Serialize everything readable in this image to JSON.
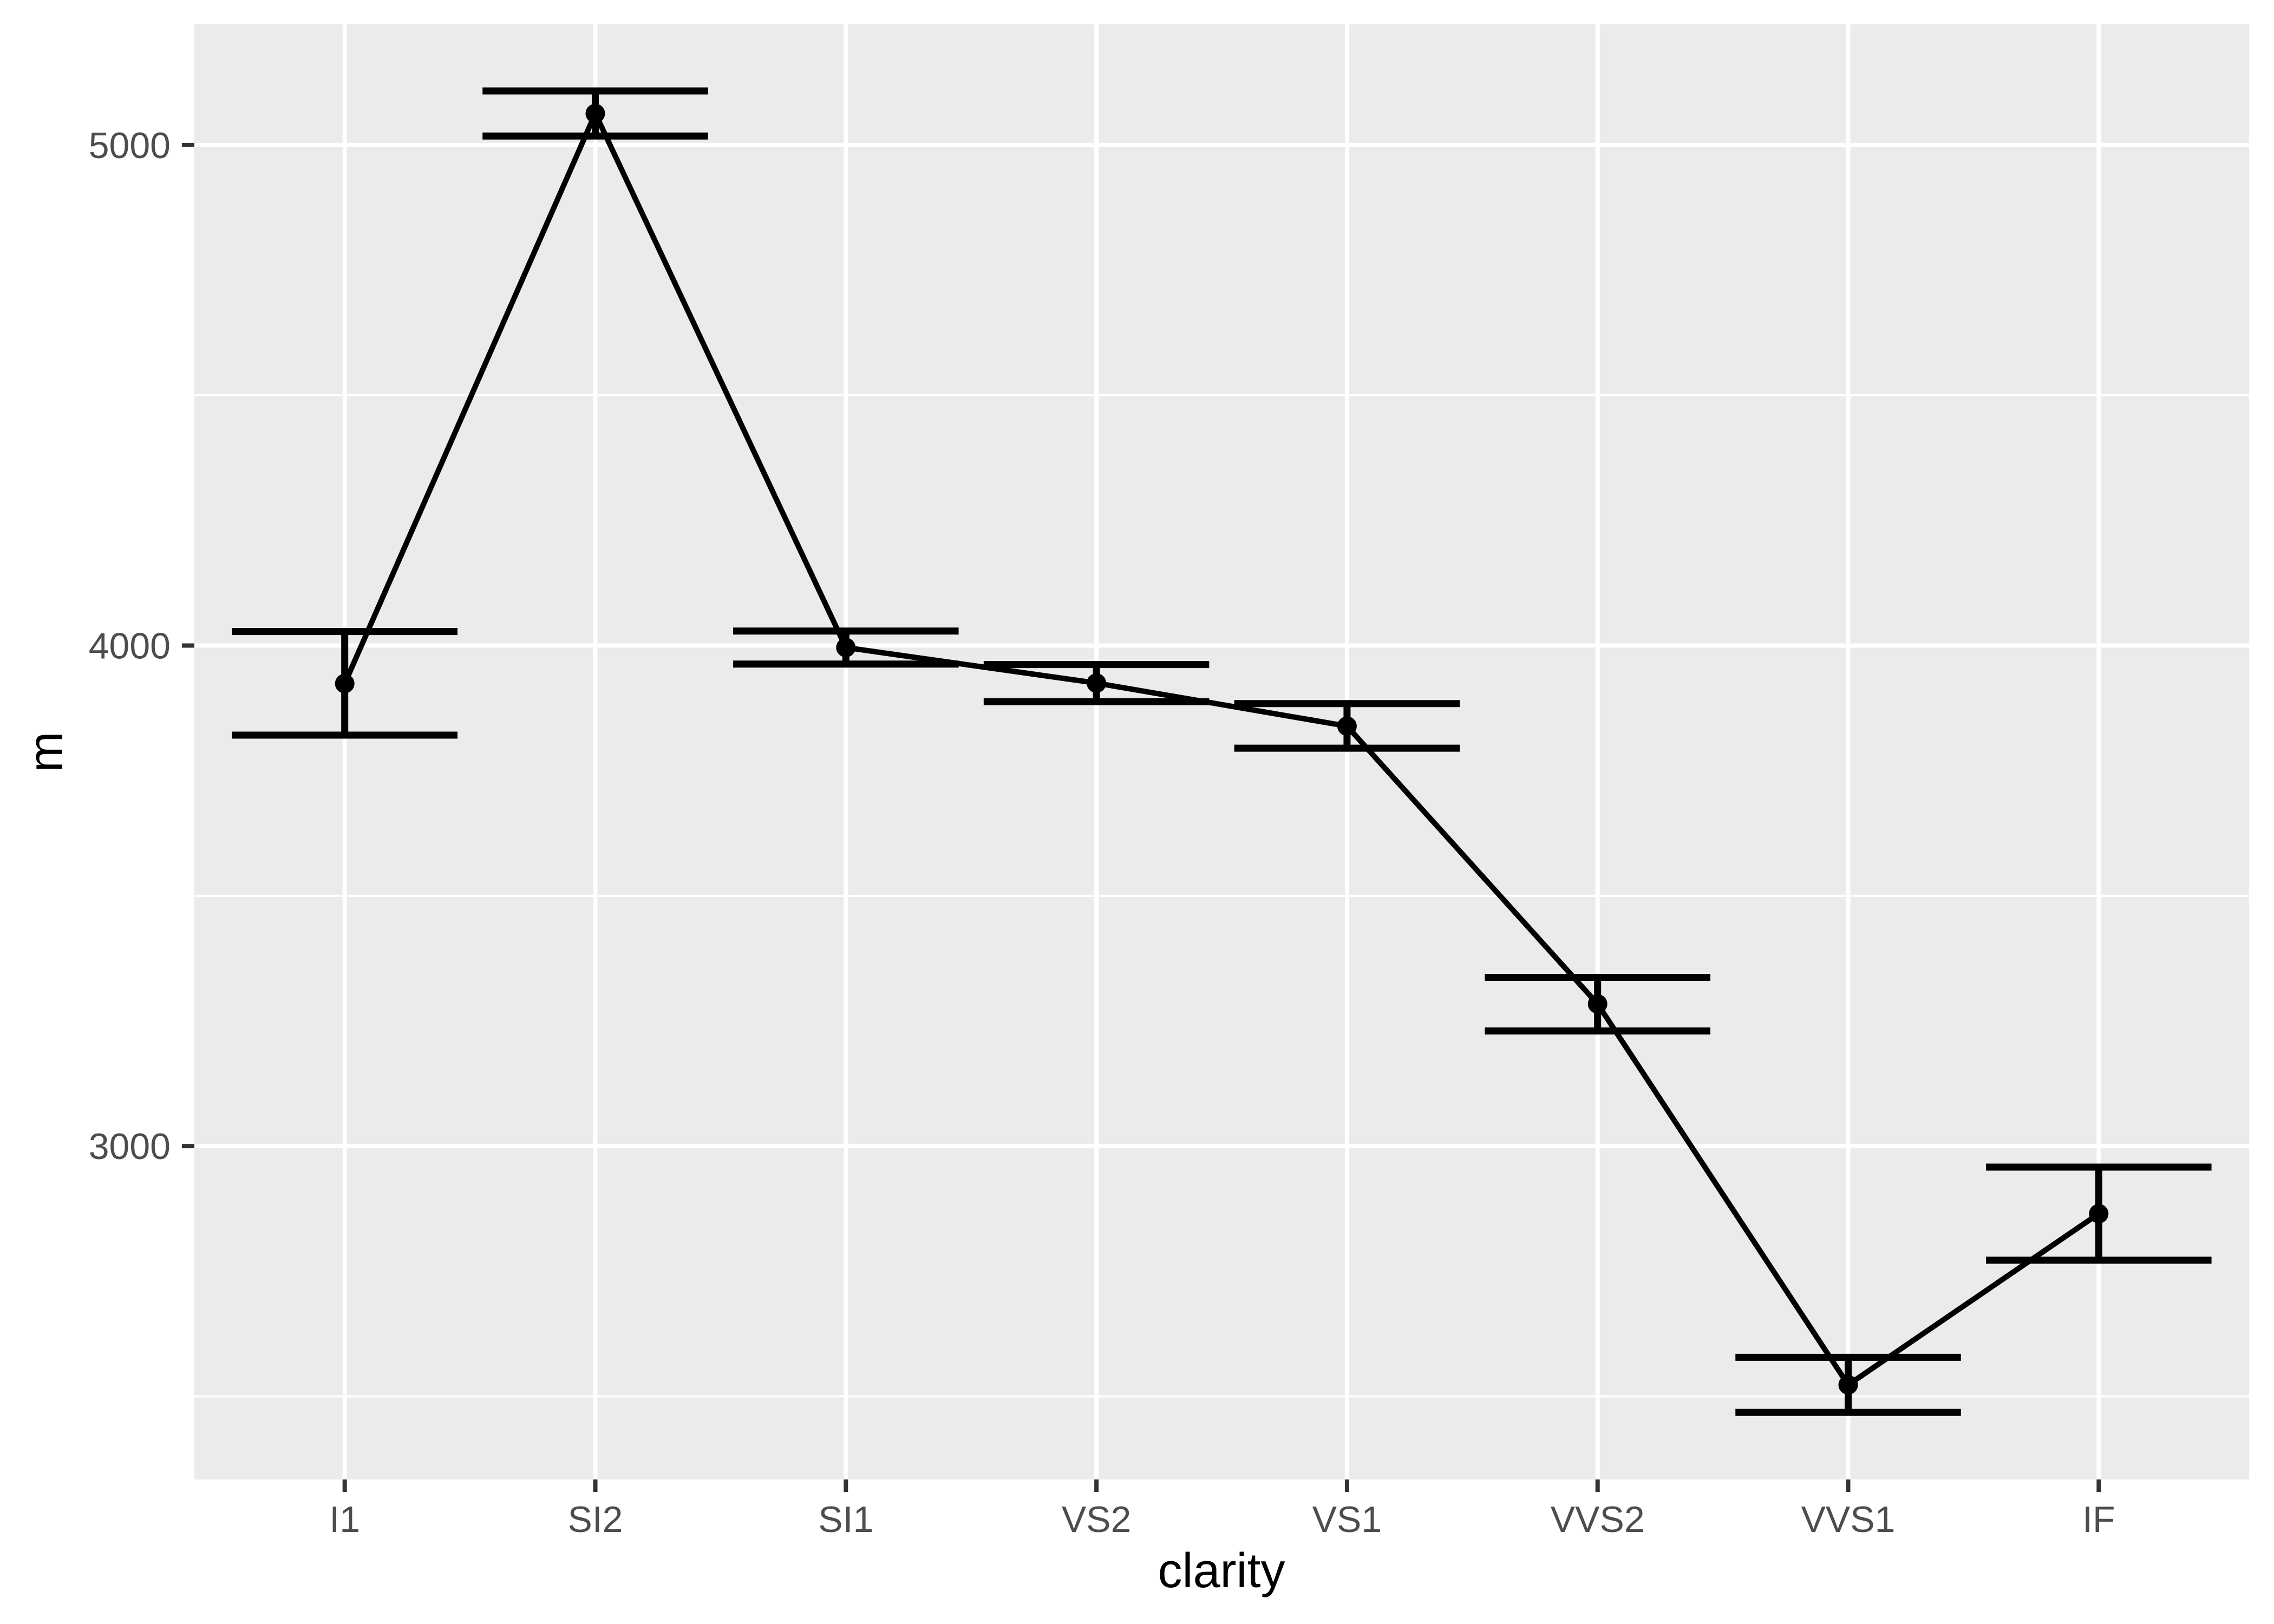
{
  "figure": {
    "background": "#FFFFFF",
    "panel_background": "#EBEBEB",
    "gridline_color": "#FFFFFF",
    "tick_mark_color": "#333333",
    "tick_label_color": "#4D4D4D",
    "axis_title_color": "#000000",
    "geom_color": "#000000"
  },
  "axes": {
    "x_title": "clarity",
    "y_title": "m",
    "y_tick_labels": [
      "3000",
      "4000",
      "5000"
    ],
    "x_tick_labels": [
      "I1",
      "SI2",
      "SI1",
      "VS2",
      "VS1",
      "VVS2",
      "VVS1",
      "IF"
    ]
  },
  "chart_data": {
    "type": "line",
    "subtype": "point-with-errorbar-crossbars",
    "title": "",
    "xlabel": "clarity",
    "ylabel": "m",
    "categories": [
      "I1",
      "SI2",
      "SI1",
      "VS2",
      "VS1",
      "VVS2",
      "VVS1",
      "IF"
    ],
    "series": [
      {
        "name": "mean",
        "values": [
          3924,
          5063,
          3996,
          3925,
          3839,
          3284,
          2523,
          2865
        ]
      },
      {
        "name": "lower_mean_minus_se",
        "values": [
          3821,
          5018,
          3963,
          3888,
          3795,
          3230,
          2468,
          2772
        ]
      },
      {
        "name": "upper_mean_plus_se",
        "values": [
          4028,
          5108,
          4029,
          3962,
          3884,
          3337,
          2578,
          2958
        ]
      }
    ],
    "y_ticks": [
      3000,
      4000,
      5000
    ],
    "y_minor_ticks": [
      2500,
      3500,
      4500
    ],
    "ylim": [
      2334,
      5241
    ],
    "x_domain": [
      0.4,
      8.6
    ],
    "error_bar_half_width_categories": 0.45,
    "grid": "on",
    "legend": "none",
    "point_marker": "filled-circle"
  }
}
